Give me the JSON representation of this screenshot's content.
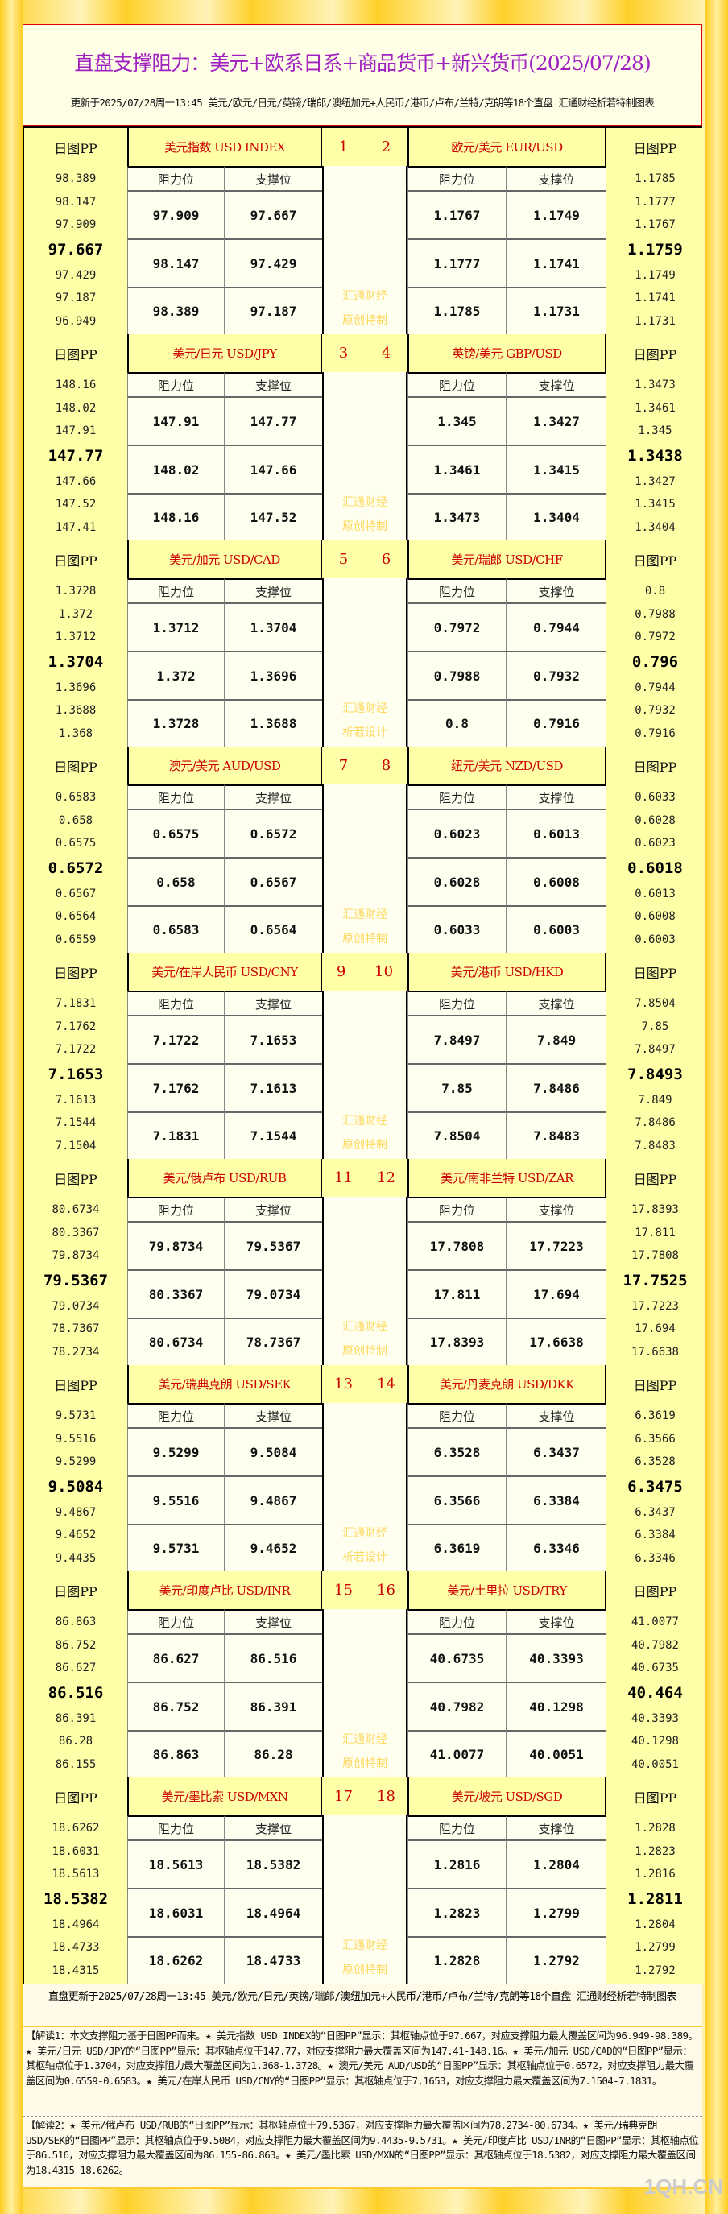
{
  "title": "直盘支撑阻力：美元+欧系日系+商品货币+新兴货币(2025/07/28)",
  "subtitle": "更新于2025/07/28周一13:45 美元/欧元/日元/英镑/瑞郎/澳纽加元+人民币/港币/卢布/兰特/克朗等18个直盘 汇通财经析若特制图表",
  "labels": {
    "pp": "日图PP",
    "resistance": "阻力位",
    "support": "支撑位"
  },
  "colors": {
    "title": "#a020c0",
    "pair_header": "#cc0000",
    "header_bg": "#ffffa8",
    "watermark": "#ffd860"
  },
  "blocks": [
    {
      "left": {
        "name": "美元指数 USD INDEX",
        "num": "1",
        "pp": [
          "98.389",
          "98.147",
          "97.909",
          "97.667",
          "97.429",
          "97.187",
          "96.949"
        ],
        "rows": [
          [
            "97.909",
            "97.667"
          ],
          [
            "98.147",
            "97.429"
          ],
          [
            "98.389",
            "97.187"
          ]
        ]
      },
      "right": {
        "name": "欧元/美元 EUR/USD",
        "num": "2",
        "pp": [
          "1.1785",
          "1.1777",
          "1.1767",
          "1.1759",
          "1.1749",
          "1.1741",
          "1.1731"
        ],
        "rows": [
          [
            "1.1767",
            "1.1749"
          ],
          [
            "1.1777",
            "1.1741"
          ],
          [
            "1.1785",
            "1.1731"
          ]
        ]
      },
      "watermark": [
        "汇通财经",
        "原创特制"
      ]
    },
    {
      "left": {
        "name": "美元/日元 USD/JPY",
        "num": "3",
        "pp": [
          "148.16",
          "148.02",
          "147.91",
          "147.77",
          "147.66",
          "147.52",
          "147.41"
        ],
        "rows": [
          [
            "147.91",
            "147.77"
          ],
          [
            "148.02",
            "147.66"
          ],
          [
            "148.16",
            "147.52"
          ]
        ]
      },
      "right": {
        "name": "英镑/美元 GBP/USD",
        "num": "4",
        "pp": [
          "1.3473",
          "1.3461",
          "1.345",
          "1.3438",
          "1.3427",
          "1.3415",
          "1.3404"
        ],
        "rows": [
          [
            "1.345",
            "1.3427"
          ],
          [
            "1.3461",
            "1.3415"
          ],
          [
            "1.3473",
            "1.3404"
          ]
        ]
      },
      "watermark": [
        "汇通财经",
        "原创特制"
      ]
    },
    {
      "left": {
        "name": "美元/加元 USD/CAD",
        "num": "5",
        "pp": [
          "1.3728",
          "1.372",
          "1.3712",
          "1.3704",
          "1.3696",
          "1.3688",
          "1.368"
        ],
        "rows": [
          [
            "1.3712",
            "1.3704"
          ],
          [
            "1.372",
            "1.3696"
          ],
          [
            "1.3728",
            "1.3688"
          ]
        ]
      },
      "right": {
        "name": "美元/瑞郎 USD/CHF",
        "num": "6",
        "pp": [
          "0.8",
          "0.7988",
          "0.7972",
          "0.796",
          "0.7944",
          "0.7932",
          "0.7916"
        ],
        "rows": [
          [
            "0.7972",
            "0.7944"
          ],
          [
            "0.7988",
            "0.7932"
          ],
          [
            "0.8",
            "0.7916"
          ]
        ]
      },
      "watermark": [
        "汇通财经",
        "析若设计"
      ]
    },
    {
      "left": {
        "name": "澳元/美元 AUD/USD",
        "num": "7",
        "pp": [
          "0.6583",
          "0.658",
          "0.6575",
          "0.6572",
          "0.6567",
          "0.6564",
          "0.6559"
        ],
        "rows": [
          [
            "0.6575",
            "0.6572"
          ],
          [
            "0.658",
            "0.6567"
          ],
          [
            "0.6583",
            "0.6564"
          ]
        ]
      },
      "right": {
        "name": "纽元/美元 NZD/USD",
        "num": "8",
        "pp": [
          "0.6033",
          "0.6028",
          "0.6023",
          "0.6018",
          "0.6013",
          "0.6008",
          "0.6003"
        ],
        "rows": [
          [
            "0.6023",
            "0.6013"
          ],
          [
            "0.6028",
            "0.6008"
          ],
          [
            "0.6033",
            "0.6003"
          ]
        ]
      },
      "watermark": [
        "汇通财经",
        "原创特制"
      ]
    },
    {
      "left": {
        "name": "美元/在岸人民币 USD/CNY",
        "num": "9",
        "pp": [
          "7.1831",
          "7.1762",
          "7.1722",
          "7.1653",
          "7.1613",
          "7.1544",
          "7.1504"
        ],
        "rows": [
          [
            "7.1722",
            "7.1653"
          ],
          [
            "7.1762",
            "7.1613"
          ],
          [
            "7.1831",
            "7.1544"
          ]
        ]
      },
      "right": {
        "name": "美元/港币 USD/HKD",
        "num": "10",
        "pp": [
          "7.8504",
          "7.85",
          "7.8497",
          "7.8493",
          "7.849",
          "7.8486",
          "7.8483"
        ],
        "rows": [
          [
            "7.8497",
            "7.849"
          ],
          [
            "7.85",
            "7.8486"
          ],
          [
            "7.8504",
            "7.8483"
          ]
        ]
      },
      "watermark": [
        "汇通财经",
        "原创特制"
      ]
    },
    {
      "left": {
        "name": "美元/俄卢布 USD/RUB",
        "num": "11",
        "pp": [
          "80.6734",
          "80.3367",
          "79.8734",
          "79.5367",
          "79.0734",
          "78.7367",
          "78.2734"
        ],
        "rows": [
          [
            "79.8734",
            "79.5367"
          ],
          [
            "80.3367",
            "79.0734"
          ],
          [
            "80.6734",
            "78.7367"
          ]
        ]
      },
      "right": {
        "name": "美元/南非兰特 USD/ZAR",
        "num": "12",
        "pp": [
          "17.8393",
          "17.811",
          "17.7808",
          "17.7525",
          "17.7223",
          "17.694",
          "17.6638"
        ],
        "rows": [
          [
            "17.7808",
            "17.7223"
          ],
          [
            "17.811",
            "17.694"
          ],
          [
            "17.8393",
            "17.6638"
          ]
        ]
      },
      "watermark": [
        "汇通财经",
        "原创特制"
      ]
    },
    {
      "left": {
        "name": "美元/瑞典克朗 USD/SEK",
        "num": "13",
        "pp": [
          "9.5731",
          "9.5516",
          "9.5299",
          "9.5084",
          "9.4867",
          "9.4652",
          "9.4435"
        ],
        "rows": [
          [
            "9.5299",
            "9.5084"
          ],
          [
            "9.5516",
            "9.4867"
          ],
          [
            "9.5731",
            "9.4652"
          ]
        ]
      },
      "right": {
        "name": "美元/丹麦克朗 USD/DKK",
        "num": "14",
        "pp": [
          "6.3619",
          "6.3566",
          "6.3528",
          "6.3475",
          "6.3437",
          "6.3384",
          "6.3346"
        ],
        "rows": [
          [
            "6.3528",
            "6.3437"
          ],
          [
            "6.3566",
            "6.3384"
          ],
          [
            "6.3619",
            "6.3346"
          ]
        ]
      },
      "watermark": [
        "汇通财经",
        "析若设计"
      ]
    },
    {
      "left": {
        "name": "美元/印度卢比 USD/INR",
        "num": "15",
        "pp": [
          "86.863",
          "86.752",
          "86.627",
          "86.516",
          "86.391",
          "86.28",
          "86.155"
        ],
        "rows": [
          [
            "86.627",
            "86.516"
          ],
          [
            "86.752",
            "86.391"
          ],
          [
            "86.863",
            "86.28"
          ]
        ]
      },
      "right": {
        "name": "美元/土里拉 USD/TRY",
        "num": "16",
        "pp": [
          "41.0077",
          "40.7982",
          "40.6735",
          "40.464",
          "40.3393",
          "40.1298",
          "40.0051"
        ],
        "rows": [
          [
            "40.6735",
            "40.3393"
          ],
          [
            "40.7982",
            "40.1298"
          ],
          [
            "41.0077",
            "40.0051"
          ]
        ]
      },
      "watermark": [
        "汇通财经",
        "原创特制"
      ]
    },
    {
      "left": {
        "name": "美元/墨比索 USD/MXN",
        "num": "17",
        "pp": [
          "18.6262",
          "18.6031",
          "18.5613",
          "18.5382",
          "18.4964",
          "18.4733",
          "18.4315"
        ],
        "rows": [
          [
            "18.5613",
            "18.5382"
          ],
          [
            "18.6031",
            "18.4964"
          ],
          [
            "18.6262",
            "18.4733"
          ]
        ]
      },
      "right": {
        "name": "美元/坡元 USD/SGD",
        "num": "18",
        "pp": [
          "1.2828",
          "1.2823",
          "1.2816",
          "1.2811",
          "1.2804",
          "1.2799",
          "1.2792"
        ],
        "rows": [
          [
            "1.2816",
            "1.2804"
          ],
          [
            "1.2823",
            "1.2799"
          ],
          [
            "1.2828",
            "1.2792"
          ]
        ]
      },
      "watermark": [
        "汇通财经",
        "原创特制"
      ]
    }
  ],
  "footer": {
    "update": "直盘更新于2025/07/28周一13:45 美元/欧元/日元/英镑/瑞郎/澳纽加元+人民币/港币/卢布/兰特/克朗等18个直盘 汇通财经析若特制图表",
    "explanation1": "【解读1：本文支撑阻力基于日图PP而来。★ 美元指数 USD INDEX的“日图PP”显示：其枢轴点位于97.667，对应支撑阻力最大覆盖区间为96.949-98.389。★ 美元/日元 USD/JPY的“日图PP”显示：其枢轴点位于147.77，对应支撑阻力最大覆盖区间为147.41-148.16。★ 美元/加元 USD/CAD的“日图PP”显示：其枢轴点位于1.3704，对应支撑阻力最大覆盖区间为1.368-1.3728。★ 澳元/美元 AUD/USD的“日图PP”显示：其枢轴点位于0.6572，对应支撑阻力最大覆盖区间为0.6559-0.6583。★ 美元/在岸人民币 USD/CNY的“日图PP”显示：其枢轴点位于7.1653，对应支撑阻力最大覆盖区间为7.1504-7.1831。",
    "explanation2": "【解读2：★ 美元/俄卢布 USD/RUB的“日图PP”显示：其枢轴点位于79.5367，对应支撑阻力最大覆盖区间为78.2734-80.6734。★ 美元/瑞典克朗 USD/SEK的“日图PP”显示：其枢轴点位于9.5084，对应支撑阻力最大覆盖区间为9.4435-9.5731。★ 美元/印度卢比 USD/INR的“日图PP”显示：其枢轴点位于86.516，对应支撑阻力最大覆盖区间为86.155-86.863。★ 美元/墨比索 USD/MXN的“日图PP”显示：其枢轴点位于18.5382，对应支撑阻力最大覆盖区间为18.4315-18.6262。",
    "watermark_logo": "1QH.CN"
  }
}
